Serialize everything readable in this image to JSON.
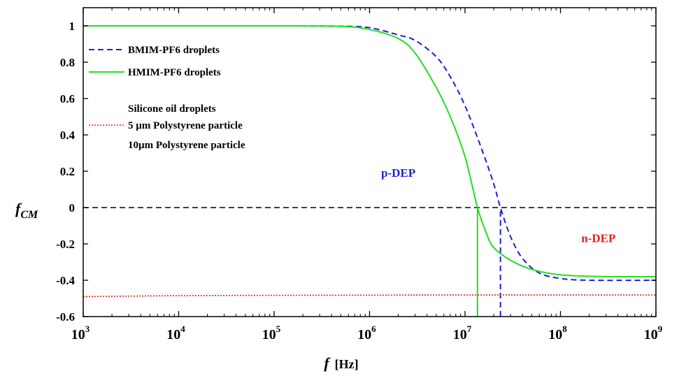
{
  "chart_data": {
    "type": "line",
    "xscale": "log",
    "xlim": [
      1000,
      1000000000
    ],
    "ylim": [
      -0.6,
      1.1
    ],
    "grid": false,
    "xlabel": "f",
    "xlabel_unit": "[Hz]",
    "ylabel": "f",
    "ylabel_subscript": "CM",
    "x_ticks": [
      {
        "base": "10",
        "exp": "3",
        "value": 1000
      },
      {
        "base": "10",
        "exp": "4",
        "value": 10000
      },
      {
        "base": "10",
        "exp": "5",
        "value": 100000
      },
      {
        "base": "10",
        "exp": "6",
        "value": 1000000
      },
      {
        "base": "10",
        "exp": "7",
        "value": 10000000
      },
      {
        "base": "10",
        "exp": "8",
        "value": 100000000
      },
      {
        "base": "10",
        "exp": "9",
        "value": 1000000000
      }
    ],
    "y_ticks": [
      {
        "label": "1",
        "value": 1
      },
      {
        "label": "0.8",
        "value": 0.8
      },
      {
        "label": "0.6",
        "value": 0.6
      },
      {
        "label": "0.4",
        "value": 0.4
      },
      {
        "label": "0.2",
        "value": 0.2
      },
      {
        "label": "0",
        "value": 0
      },
      {
        "label": "-0.2",
        "value": -0.2
      },
      {
        "label": "-0.4",
        "value": -0.4
      },
      {
        "label": "-0.6",
        "value": -0.6
      }
    ],
    "series": [
      {
        "name": "BMIM-PF6 droplets",
        "color": "#1f1fd6",
        "dash": "dashed",
        "x": [
          1000,
          100000,
          500000,
          1000000,
          2000000,
          3000000,
          5000000,
          7000000,
          10000000,
          15000000,
          20000000,
          23500000,
          30000000,
          40000000,
          60000000,
          100000000,
          200000000,
          1000000000
        ],
        "y": [
          1,
          1,
          0.998,
          0.99,
          0.95,
          0.92,
          0.83,
          0.72,
          0.56,
          0.32,
          0.13,
          0,
          -0.16,
          -0.28,
          -0.36,
          -0.39,
          -0.4,
          -0.4
        ]
      },
      {
        "name": "HMIM-PF6 droplets",
        "color": "#22e022",
        "dash": "solid",
        "x": [
          1000,
          100000,
          500000,
          1000000,
          2000000,
          3000000,
          5000000,
          7000000,
          10000000,
          13500000,
          17000000,
          20000000,
          30000000,
          50000000,
          100000000,
          300000000,
          1000000000
        ],
        "y": [
          1,
          1,
          0.997,
          0.98,
          0.93,
          0.85,
          0.66,
          0.5,
          0.28,
          0,
          -0.15,
          -0.22,
          -0.29,
          -0.34,
          -0.37,
          -0.38,
          -0.38
        ]
      },
      {
        "name": "5 µm Polystyrene particle",
        "color": "#e02020",
        "dash": "dotted",
        "x": [
          1000,
          10000,
          100000,
          1000000,
          10000000,
          100000000,
          1000000000
        ],
        "y": [
          -0.49,
          -0.485,
          -0.483,
          -0.482,
          -0.481,
          -0.481,
          -0.481
        ]
      }
    ],
    "crossover_markers": [
      {
        "x": 13500000,
        "y_from": -0.6,
        "y_to": 0,
        "color": "#22e022",
        "dash": "solid"
      },
      {
        "x": 23500000,
        "y_from": -0.6,
        "y_to": 0,
        "color": "#1f1fd6",
        "dash": "dashed"
      }
    ],
    "zero_line": {
      "y": 0,
      "color": "#000000",
      "dash": "dashed"
    },
    "legend": {
      "placement": "top-left",
      "entries": [
        {
          "label": "BMIM-PF6 droplets",
          "series": "BMIM-PF6 droplets"
        },
        {
          "label": "HMIM-PF6 droplets",
          "series": "HMIM-PF6 droplets"
        },
        {
          "label": "Silicone oil droplets",
          "series": null
        },
        {
          "label": "5 µm Polystyrene particle",
          "series": "5 µm Polystyrene particle"
        },
        {
          "label": "10µm Polystyrene particle",
          "series": null
        }
      ]
    },
    "annotations": [
      {
        "text": "p-DEP",
        "color": "#1f1fd6",
        "x": 2000000,
        "y": 0.17
      },
      {
        "text": "n-DEP",
        "color": "#e02020",
        "x": 250000000,
        "y": -0.19
      }
    ]
  }
}
